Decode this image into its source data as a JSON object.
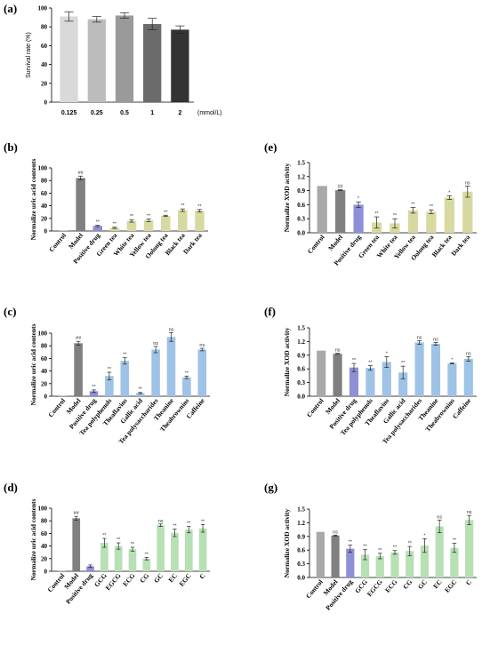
{
  "chart_data": [
    {
      "panel": "(a)",
      "type": "bar",
      "ylabel": "Survival rate (%)",
      "xlabel": "(mmol/L)",
      "ylim": [
        0,
        100
      ],
      "yticks": [
        0,
        20,
        40,
        60,
        80,
        100
      ],
      "categories": [
        "0.125",
        "0.25",
        "0.5",
        "1",
        "2"
      ],
      "values": [
        91,
        88,
        92,
        83,
        77
      ],
      "errors": [
        5,
        3,
        3,
        6,
        4
      ],
      "significance": [
        "",
        "",
        "",
        "",
        ""
      ],
      "colors": [
        "#d9d9d9",
        "#bcbcbc",
        "#9a9a9a",
        "#6b6b6b",
        "#333333"
      ]
    },
    {
      "panel": "(b)",
      "type": "bar",
      "ylabel": "Normalize uric acid contents",
      "ylim": [
        0,
        100
      ],
      "yticks": [
        0,
        20,
        40,
        60,
        80,
        100
      ],
      "categories": [
        "Control",
        "Model",
        "Positive drug",
        "Green tea",
        "White tea",
        "Yellow tea",
        "Oolong tea",
        "Black tea",
        "Dark tea"
      ],
      "values": [
        0.5,
        84,
        8,
        5,
        16,
        17,
        24,
        33,
        32
      ],
      "errors": [
        0,
        3,
        1,
        1,
        2,
        2,
        1,
        2,
        2
      ],
      "significance": [
        "",
        "##",
        "**",
        "**",
        "**",
        "**",
        "**",
        "**",
        "**"
      ],
      "colors": [
        "#a9a9a9",
        "#808080",
        "#8e8fd6",
        "#d8d9a0",
        "#d8d9a0",
        "#d8d9a0",
        "#d8d9a0",
        "#d8d9a0",
        "#d8d9a0"
      ]
    },
    {
      "panel": "(c)",
      "type": "bar",
      "ylabel": "Normalize uric acid contents",
      "ylim": [
        0,
        100
      ],
      "yticks": [
        0,
        20,
        40,
        60,
        80,
        100
      ],
      "categories": [
        "Control",
        "Model",
        "Positive drug",
        "Tea polyphenols",
        "Theaflavins",
        "Gallic acid",
        "Tea polysaccharides",
        "Theanine",
        "Theabrownins",
        "Caffeine"
      ],
      "values": [
        0.5,
        84,
        8,
        32,
        56,
        5,
        74,
        94,
        30,
        74
      ],
      "errors": [
        0,
        3,
        2,
        6,
        5,
        1,
        5,
        7,
        2,
        2
      ],
      "significance": [
        "",
        "##",
        "**",
        "**",
        "**",
        "**",
        "ns",
        "ns",
        "**",
        "ns"
      ],
      "colors": [
        "#a9a9a9",
        "#808080",
        "#8e8fd6",
        "#9ec3e6",
        "#9ec3e6",
        "#9ec3e6",
        "#9ec3e6",
        "#9ec3e6",
        "#9ec3e6",
        "#9ec3e6"
      ]
    },
    {
      "panel": "(d)",
      "type": "bar",
      "ylabel": "Normalize uric acid contents",
      "ylim": [
        0,
        100
      ],
      "yticks": [
        0,
        20,
        40,
        60,
        80,
        100
      ],
      "categories": [
        "Control",
        "Model",
        "Positive drug",
        "GCG",
        "EGCG",
        "ECG",
        "CG",
        "GC",
        "EC",
        "EGC",
        "C"
      ],
      "values": [
        0.5,
        84,
        8,
        45,
        40,
        35,
        20,
        73,
        61,
        66,
        68
      ],
      "errors": [
        0,
        3,
        2,
        7,
        5,
        3,
        2,
        2,
        6,
        5,
        6
      ],
      "significance": [
        "",
        "##",
        "",
        "**",
        "**",
        "**",
        "**",
        "ns",
        "**",
        "**",
        "**"
      ],
      "colors": [
        "#a9a9a9",
        "#808080",
        "#8e8fd6",
        "#b7e0b5",
        "#b7e0b5",
        "#b7e0b5",
        "#b7e0b5",
        "#b7e0b5",
        "#b7e0b5",
        "#b7e0b5",
        "#b7e0b5"
      ]
    },
    {
      "panel": "(e)",
      "type": "bar",
      "ylabel": "Normalize XOD activity",
      "ylim": [
        0,
        1.5
      ],
      "yticks": [
        "0.0",
        "0.3",
        "0.6",
        "0.9",
        "1.2",
        "1.5"
      ],
      "categories": [
        "Control",
        "Model",
        "Positive drug",
        "Green tea",
        "White tea",
        "Yellow tea",
        "Oolong tea",
        "Black tea",
        "Dark tea"
      ],
      "values": [
        1.0,
        0.91,
        0.6,
        0.22,
        0.2,
        0.48,
        0.45,
        0.75,
        0.88
      ],
      "errors": [
        0,
        0.01,
        0.06,
        0.12,
        0.1,
        0.06,
        0.04,
        0.04,
        0.12
      ],
      "significance": [
        "",
        "##",
        "*",
        "**",
        "**",
        "**",
        "**",
        "*",
        "ns"
      ],
      "sigcolors": [
        "#333",
        "#e05050",
        "#333",
        "#333",
        "#333",
        "#333",
        "#333",
        "#333",
        "#333"
      ],
      "colors": [
        "#a9a9a9",
        "#808080",
        "#8e8fd6",
        "#d8d9a0",
        "#d8d9a0",
        "#d8d9a0",
        "#d8d9a0",
        "#d8d9a0",
        "#d8d9a0"
      ]
    },
    {
      "panel": "(f)",
      "type": "bar",
      "ylabel": "Normalize XOD activity",
      "ylim": [
        0,
        1.5
      ],
      "yticks": [
        "0.0",
        "0.3",
        "0.6",
        "0.9",
        "1.2",
        "1.5"
      ],
      "categories": [
        "Control",
        "Model",
        "Positive drug",
        "Tea polyphenols",
        "Theaflavins",
        "Gallic acid",
        "Tea polysaccharides",
        "Theanine",
        "Theabrownins",
        "Caffeine"
      ],
      "values": [
        1.0,
        0.93,
        0.63,
        0.62,
        0.75,
        0.52,
        1.18,
        1.15,
        0.72,
        0.82
      ],
      "errors": [
        0,
        0.01,
        0.09,
        0.05,
        0.12,
        0.14,
        0.04,
        0.03,
        0.01,
        0.05
      ],
      "significance": [
        "",
        "ns",
        "**",
        "**",
        "*",
        "**",
        "ns",
        "ns",
        "*",
        "ns"
      ],
      "sigcolors": [
        "#333",
        "#e05050",
        "#333",
        "#333",
        "#333",
        "#333",
        "#333",
        "#333",
        "#333",
        "#333"
      ],
      "colors": [
        "#a9a9a9",
        "#808080",
        "#8e8fd6",
        "#9ec3e6",
        "#9ec3e6",
        "#9ec3e6",
        "#9ec3e6",
        "#9ec3e6",
        "#9ec3e6",
        "#9ec3e6"
      ]
    },
    {
      "panel": "(g)",
      "type": "bar",
      "ylabel": "Normalize XOD activity",
      "ylim": [
        0,
        1.5
      ],
      "yticks": [
        "0.0",
        "0.3",
        "0.6",
        "0.9",
        "1.2",
        "1.5"
      ],
      "categories": [
        "Control",
        "Model",
        "Positive drug",
        "GCG",
        "EGCG",
        "ECG",
        "CG",
        "GC",
        "EC",
        "EGC",
        "C"
      ],
      "values": [
        1.0,
        0.92,
        0.63,
        0.5,
        0.47,
        0.55,
        0.58,
        0.7,
        1.12,
        0.65,
        1.26
      ],
      "errors": [
        0,
        0.01,
        0.08,
        0.11,
        0.06,
        0.04,
        0.1,
        0.15,
        0.14,
        0.1,
        0.1
      ],
      "significance": [
        "",
        "ns",
        "**",
        "**",
        "**",
        "**",
        "**",
        "*",
        "ns",
        "**",
        "ns"
      ],
      "sigcolors": [
        "#333",
        "#e05050",
        "#333",
        "#333",
        "#333",
        "#333",
        "#333",
        "#333",
        "#333",
        "#333",
        "#333"
      ],
      "colors": [
        "#a9a9a9",
        "#808080",
        "#8e8fd6",
        "#b7e0b5",
        "#b7e0b5",
        "#b7e0b5",
        "#b7e0b5",
        "#b7e0b5",
        "#b7e0b5",
        "#b7e0b5",
        "#b7e0b5"
      ]
    }
  ]
}
